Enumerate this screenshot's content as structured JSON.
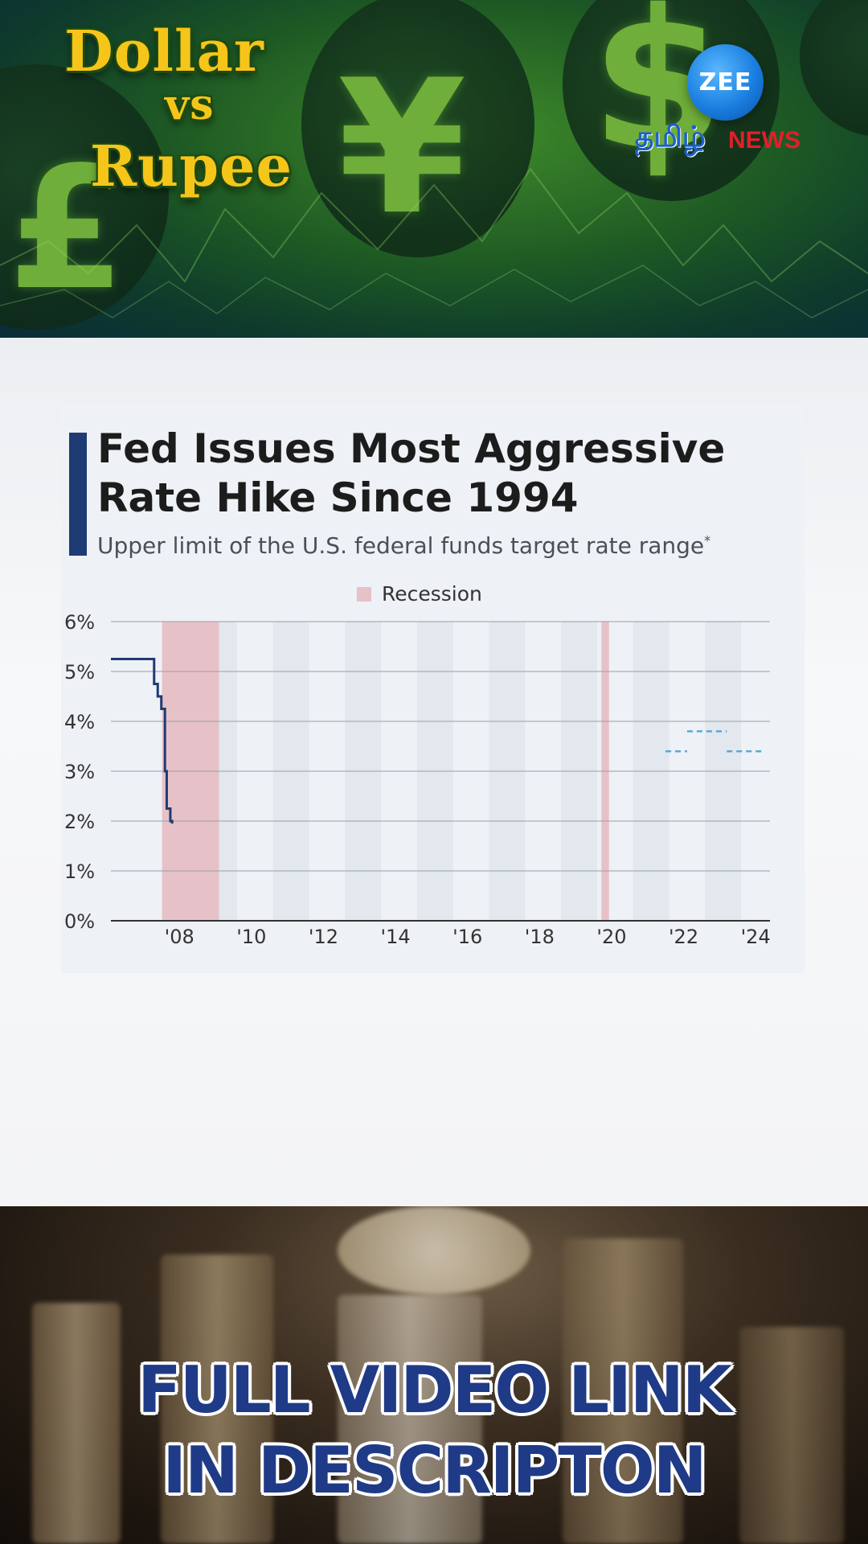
{
  "banner": {
    "title_line1": "Dollar",
    "title_line2": "vs",
    "title_line3": "Rupee",
    "currency_icons": [
      "pound-icon",
      "yen-icon",
      "dollar-icon"
    ],
    "logo": {
      "zee": "ZEE",
      "tamil": "தமிழ்",
      "news": "NEWS"
    }
  },
  "chart": {
    "title_line1": "Fed Issues Most Aggressive",
    "title_line2": "Rate Hike Since 1994",
    "subtitle": "Upper limit of the U.S. federal funds target rate range",
    "subtitle_mark": "*",
    "legend_label": "Recession"
  },
  "chart_data": {
    "type": "line",
    "title": "Fed Issues Most Aggressive Rate Hike Since 1994",
    "subtitle": "Upper limit of the U.S. federal funds target rate range*",
    "xlabel": "",
    "ylabel": "",
    "xlim": [
      2006.5,
      2024.8
    ],
    "ylim": [
      0,
      6
    ],
    "x_ticks": [
      2008,
      2010,
      2012,
      2014,
      2016,
      2018,
      2020,
      2022,
      2024
    ],
    "x_tick_labels": [
      "'08",
      "'10",
      "'12",
      "'14",
      "'16",
      "'18",
      "'20",
      "'22",
      "'24"
    ],
    "y_ticks": [
      0,
      1,
      2,
      3,
      4,
      5,
      6
    ],
    "y_tick_labels": [
      "0%",
      "1%",
      "2%",
      "3%",
      "4%",
      "5%",
      "6%"
    ],
    "grid": "horizontal",
    "legend": "top-center",
    "recessions": [
      {
        "start": 2007.92,
        "end": 2009.5
      },
      {
        "start": 2020.12,
        "end": 2020.33
      }
    ],
    "series": [
      {
        "color": "#1f3b73",
        "style": "step",
        "x": [
          2006.5,
          2007.7,
          2007.7,
          2007.8,
          2007.8,
          2007.9,
          2007.9,
          2008.0,
          2008.0,
          2008.05,
          2008.05,
          2008.15,
          2008.15,
          2008.2,
          2008.2
        ],
        "y": [
          5.25,
          5.25,
          4.75,
          4.75,
          4.5,
          4.5,
          4.25,
          4.25,
          3.0,
          3.0,
          2.25,
          2.25,
          2.0,
          2.0,
          1.95
        ]
      },
      {
        "color": "#5aa9d6",
        "style": "dashed",
        "segments": [
          {
            "x": [
              2021.9,
              2022.5
            ],
            "y": [
              3.4,
              3.4
            ]
          },
          {
            "x": [
              2022.5,
              2023.6
            ],
            "y": [
              3.8,
              3.8
            ]
          },
          {
            "x": [
              2023.6,
              2024.6
            ],
            "y": [
              3.4,
              3.4
            ]
          }
        ]
      }
    ],
    "colors": {
      "recession": "#e7c1c8",
      "band": "#e3e7ee",
      "axis": "#333333",
      "grid": "#9aa0a8"
    }
  },
  "cta": {
    "line1": "FULL VIDEO LINK",
    "line2": "IN DESCRIPTON"
  }
}
